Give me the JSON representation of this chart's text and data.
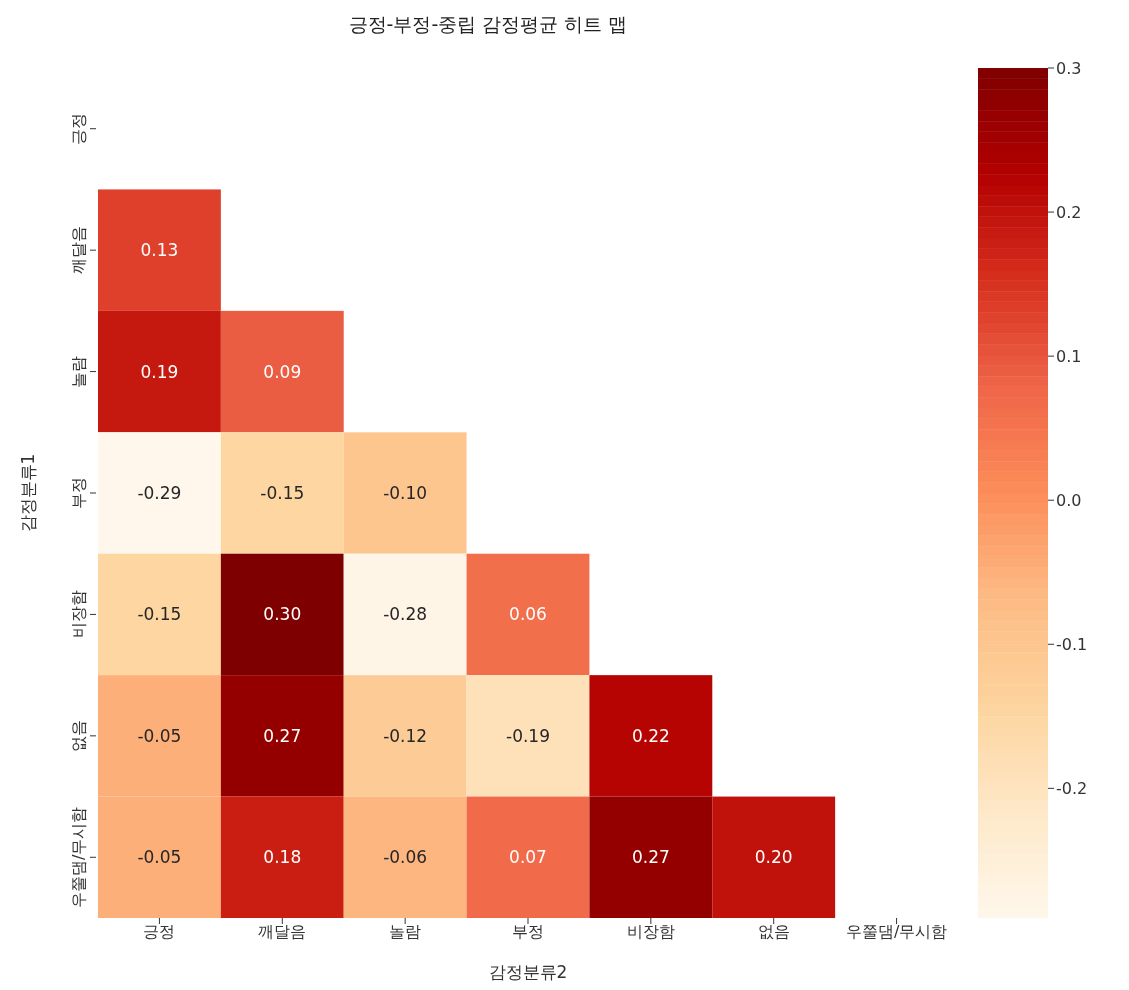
{
  "chart_data": {
    "type": "heatmap",
    "title": "긍정-부정-중립 감정평균 히트 맵",
    "xlabel": "감정분류2",
    "ylabel": "감정분류1",
    "categories": [
      "긍정",
      "깨달음",
      "놀람",
      "부정",
      "비장함",
      "없음",
      "우쭐댐/무시함"
    ],
    "y_categories": [
      "긍정",
      "깨달음",
      "놀람",
      "부정",
      "비장함",
      "없음",
      "우쭐댐/무시함"
    ],
    "cells": [
      [
        null,
        null,
        null,
        null,
        null,
        null,
        null
      ],
      [
        0.13,
        null,
        null,
        null,
        null,
        null,
        null
      ],
      [
        0.19,
        0.09,
        null,
        null,
        null,
        null,
        null
      ],
      [
        -0.29,
        -0.15,
        -0.1,
        null,
        null,
        null,
        null
      ],
      [
        -0.15,
        0.3,
        -0.28,
        0.06,
        null,
        null,
        null
      ],
      [
        -0.05,
        0.27,
        -0.12,
        -0.19,
        0.22,
        null,
        null
      ],
      [
        -0.05,
        0.18,
        -0.06,
        0.07,
        0.27,
        0.2,
        null
      ]
    ],
    "cell_labels": [
      [
        null,
        null,
        null,
        null,
        null,
        null,
        null
      ],
      [
        "0.13",
        null,
        null,
        null,
        null,
        null,
        null
      ],
      [
        "0.19",
        "0.09",
        null,
        null,
        null,
        null,
        null
      ],
      [
        "-0.29",
        "-0.15",
        "-0.10",
        null,
        null,
        null,
        null
      ],
      [
        "-0.15",
        "0.30",
        "-0.28",
        "0.06",
        null,
        null,
        null
      ],
      [
        "-0.05",
        "0.27",
        "-0.12",
        "-0.19",
        "0.22",
        null,
        null
      ],
      [
        "-0.05",
        "0.18",
        "-0.06",
        "0.07",
        "0.27",
        "0.20",
        null
      ]
    ],
    "colors": [
      "#fff7ec",
      "#fee8c8",
      "#fdd49e",
      "#fdbb84",
      "#fc8d59",
      "#ef6548",
      "#d7301f",
      "#b30000",
      "#7f0000"
    ],
    "clim": [
      -0.29,
      0.3
    ],
    "cticks": [
      {
        "value": -0.2,
        "label": "-0.2"
      },
      {
        "value": -0.1,
        "label": "-0.1"
      },
      {
        "value": 0,
        "label": "0.0"
      },
      {
        "value": 0.1,
        "label": "0.1"
      },
      {
        "value": 0.2,
        "label": "0.2"
      },
      {
        "value": 0.3,
        "label": "0.3"
      }
    ]
  }
}
